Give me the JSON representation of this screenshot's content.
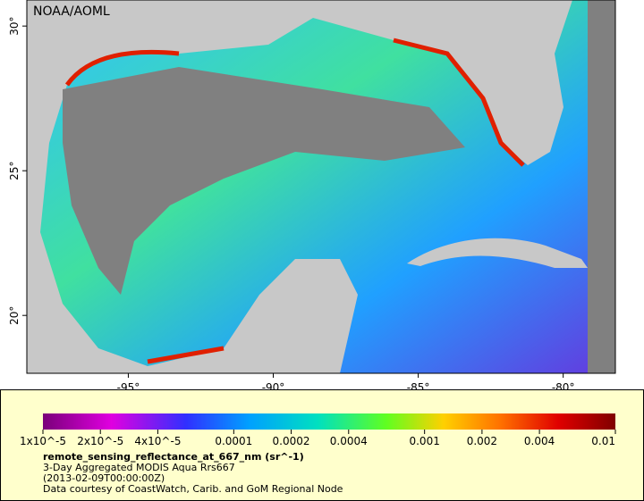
{
  "map": {
    "credit": "NOAA/AOML",
    "lonlim": [
      -98.5,
      -78.2
    ],
    "latlim": [
      18.0,
      30.9
    ],
    "lon_ticks": [
      {
        "value": -95,
        "label": "-95°"
      },
      {
        "value": -90,
        "label": "-90°"
      },
      {
        "value": -85,
        "label": "-85°"
      },
      {
        "value": -80,
        "label": "-80°"
      }
    ],
    "lat_ticks": [
      {
        "value": 30,
        "label": "30°"
      },
      {
        "value": 25,
        "label": "25°"
      },
      {
        "value": 20,
        "label": "20°"
      }
    ]
  },
  "colorbar": {
    "log_scale": true,
    "lim": [
      1e-05,
      0.01
    ],
    "ticks": [
      {
        "value": 1e-05,
        "label": "1x10^-5"
      },
      {
        "value": 2e-05,
        "label": "2x10^-5"
      },
      {
        "value": 4e-05,
        "label": "4x10^-5"
      },
      {
        "value": 0.0001,
        "label": "0.0001"
      },
      {
        "value": 0.0002,
        "label": "0.0002"
      },
      {
        "value": 0.0004,
        "label": "0.0004"
      },
      {
        "value": 0.001,
        "label": "0.001"
      },
      {
        "value": 0.002,
        "label": "0.002"
      },
      {
        "value": 0.004,
        "label": "0.004"
      },
      {
        "value": 0.01,
        "label": "0.01"
      }
    ]
  },
  "caption": {
    "title": "remote_sensing_reflectance_at_667_nm (sr^-1)",
    "lines": [
      "3-Day Aggregated MODIS Aqua Rrs667",
      "(2013-02-09T00:00:00Z)",
      "Data courtesy of CoastWatch, Carib. and GoM Regional Node"
    ]
  }
}
